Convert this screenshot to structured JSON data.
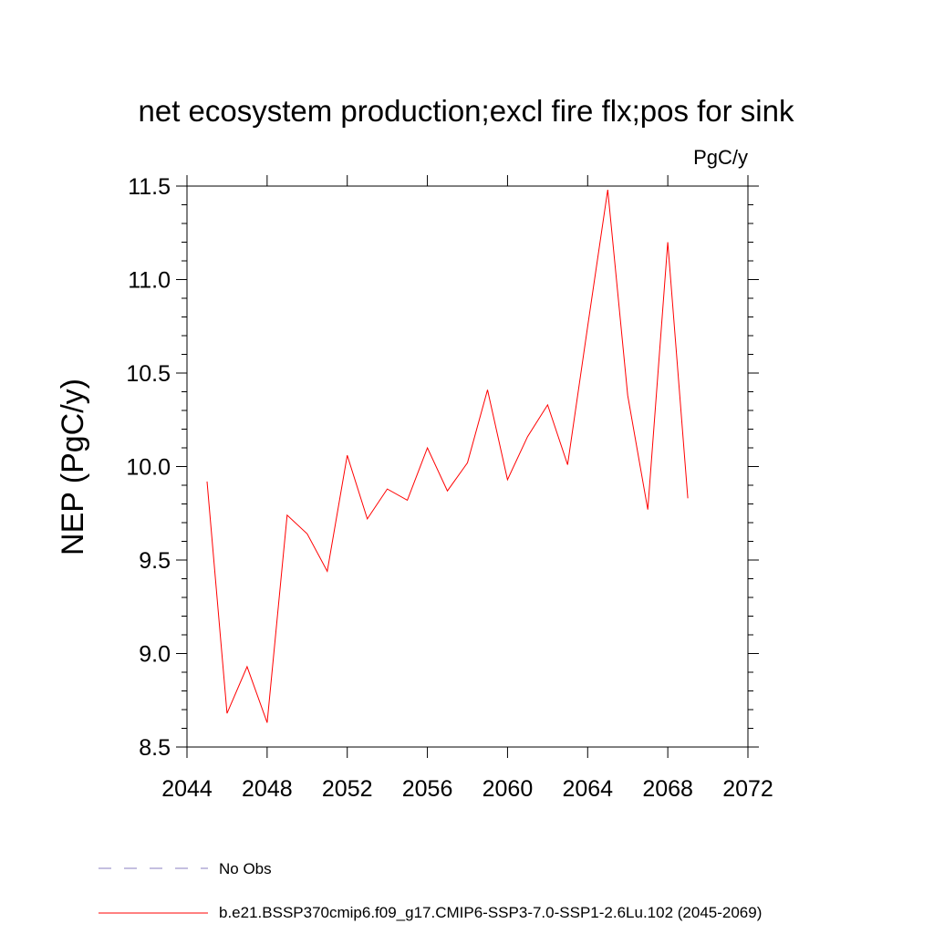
{
  "chart_data": {
    "type": "line",
    "title": "net ecosystem production;excl fire flx;pos for sink",
    "units": "PgC/y",
    "ylabel": "NEP  (PgC/y)",
    "xlabel": "",
    "xlim": [
      2044,
      2072
    ],
    "ylim": [
      8.5,
      11.5
    ],
    "x_ticks": [
      "2044",
      "2048",
      "2052",
      "2056",
      "2060",
      "2064",
      "2068",
      "2072"
    ],
    "y_ticks": [
      "8.5",
      "9.0",
      "9.5",
      "10.0",
      "10.5",
      "11.0",
      "11.5"
    ],
    "x": [
      2045,
      2046,
      2047,
      2048,
      2049,
      2050,
      2051,
      2052,
      2053,
      2054,
      2055,
      2056,
      2057,
      2058,
      2059,
      2060,
      2061,
      2062,
      2063,
      2064,
      2065,
      2066,
      2067,
      2068,
      2069
    ],
    "series": [
      {
        "name": "b.e21.BSSP370cmip6.f09_g17.CMIP6-SSP3-7.0-SSP1-2.6Lu.102 (2045-2069)",
        "color": "#ff0000",
        "values": [
          9.92,
          8.68,
          8.93,
          8.63,
          9.74,
          9.64,
          9.44,
          10.06,
          9.72,
          9.88,
          9.82,
          10.1,
          9.87,
          10.02,
          10.41,
          9.93,
          10.16,
          10.33,
          10.01,
          10.75,
          11.48,
          10.38,
          9.77,
          11.2,
          9.83
        ]
      }
    ],
    "legend": [
      {
        "label": "No Obs",
        "color": "#8a7fc0",
        "style": "dashed"
      },
      {
        "label": "b.e21.BSSP370cmip6.f09_g17.CMIP6-SSP3-7.0-SSP1-2.6Lu.102 (2045-2069)",
        "color": "#ff0000",
        "style": "solid"
      }
    ],
    "legend_position": "bottom-left",
    "grid": false
  }
}
